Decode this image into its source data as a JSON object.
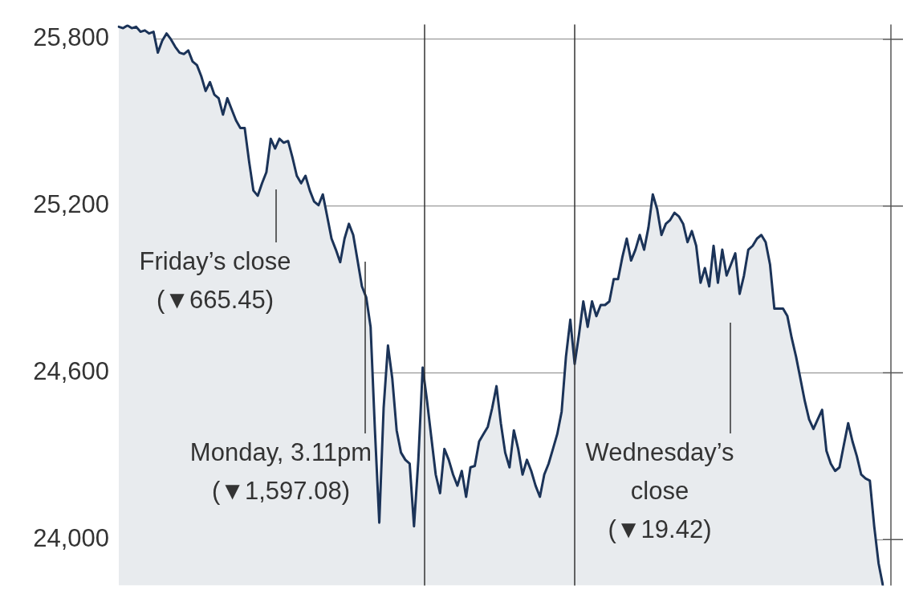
{
  "chart_data": {
    "type": "area",
    "categories": [
      null,
      null,
      null,
      null,
      null,
      null,
      null,
      null,
      null,
      null,
      null,
      null,
      null,
      null,
      null,
      null,
      null,
      null,
      null,
      null,
      null,
      null,
      null,
      null,
      null,
      null,
      null,
      null,
      null,
      null,
      null,
      null,
      null,
      null,
      null,
      null,
      null,
      null,
      null,
      null,
      null,
      null,
      null,
      null,
      null,
      null,
      null,
      null,
      null,
      null,
      null,
      null,
      null,
      null,
      null,
      null,
      null,
      null,
      null,
      null,
      null,
      null,
      null,
      null,
      null,
      null,
      null,
      null,
      null,
      null,
      null,
      null,
      null,
      null,
      null,
      null,
      null,
      null,
      null,
      null,
      null,
      null,
      null,
      null,
      null,
      null,
      null,
      null,
      null,
      null,
      null,
      null,
      null,
      null,
      null,
      null,
      null,
      null,
      null,
      null,
      null,
      null,
      null,
      null,
      null,
      null,
      null,
      null,
      null,
      null,
      null,
      null,
      null,
      null,
      null,
      null,
      null,
      null,
      null,
      null,
      null,
      null,
      null,
      null,
      null,
      null,
      null,
      null,
      null,
      null,
      null,
      null,
      null,
      null,
      null,
      null,
      null,
      null,
      null,
      null,
      null,
      null,
      null,
      null,
      null,
      null,
      null,
      null,
      null,
      null,
      null,
      null,
      null,
      null,
      null,
      null,
      null,
      null,
      null,
      null,
      null,
      null,
      null,
      null,
      null,
      null,
      null,
      null,
      null,
      null,
      null,
      null,
      null,
      null,
      null,
      null,
      null
    ],
    "series": [
      {
        "color": "#1b3358",
        "values": [
          25845,
          25840,
          25850,
          25840,
          25845,
          25827,
          25832,
          25821,
          25827,
          25752,
          25795,
          25821,
          25800,
          25773,
          25752,
          25747,
          25760,
          25720,
          25707,
          25667,
          25614,
          25646,
          25601,
          25588,
          25529,
          25588,
          25548,
          25508,
          25481,
          25481,
          25362,
          25256,
          25237,
          25282,
          25322,
          25442,
          25407,
          25442,
          25428,
          25434,
          25375,
          25309,
          25282,
          25309,
          25256,
          25216,
          25203,
          25242,
          25163,
          25083,
          25043,
          24998,
          25083,
          25136,
          25096,
          25004,
          24911,
          24871,
          24765,
          24393,
          24061,
          24473,
          24698,
          24579,
          24393,
          24313,
          24287,
          24273,
          24048,
          24287,
          24619,
          24499,
          24366,
          24234,
          24167,
          24326,
          24287,
          24234,
          24194,
          24247,
          24154,
          24260,
          24265,
          24353,
          24380,
          24406,
          24473,
          24552,
          24419,
          24313,
          24260,
          24393,
          24326,
          24234,
          24287,
          24247,
          24194,
          24154,
          24234,
          24273,
          24326,
          24380,
          24460,
          24658,
          24791,
          24632,
          24738,
          24857,
          24765,
          24857,
          24804,
          24844,
          24844,
          24857,
          24937,
          24937,
          25017,
          25083,
          25004,
          25043,
          25096,
          25043,
          25123,
          25242,
          25189,
          25096,
          25136,
          25150,
          25176,
          25163,
          25136,
          25070,
          25110,
          25057,
          24924,
          24977,
          24911,
          25057,
          24924,
          25043,
          24950,
          24990,
          25030,
          24884,
          24950,
          25043,
          25057,
          25083,
          25096,
          25070,
          24990,
          24831,
          24831,
          24831,
          24804,
          24725,
          24658,
          24579,
          24499,
          24433,
          24398,
          24433,
          24467,
          24319,
          24273,
          24247,
          24260,
          24340,
          24419,
          24353,
          24300,
          24234,
          24220,
          24212,
          24048,
          23915,
          23835
        ]
      }
    ],
    "ylim": [
      23835,
      25853
    ],
    "yticks": [
      {
        "value": 24000,
        "label": "24,000"
      },
      {
        "value": 24600,
        "label": "24,600"
      },
      {
        "value": 25200,
        "label": "25,200"
      },
      {
        "value": 25800,
        "label": "25,800"
      }
    ],
    "grid": "y",
    "tick_labels": "y",
    "marker": "none",
    "line_style": "solid",
    "annotations": [
      "Friday’s close\n(▼665.45)",
      "Monday, 3.11pm\n(▼1,597.08)",
      "Wednesday’s\nclose\n(▼19.42)"
    ]
  }
}
